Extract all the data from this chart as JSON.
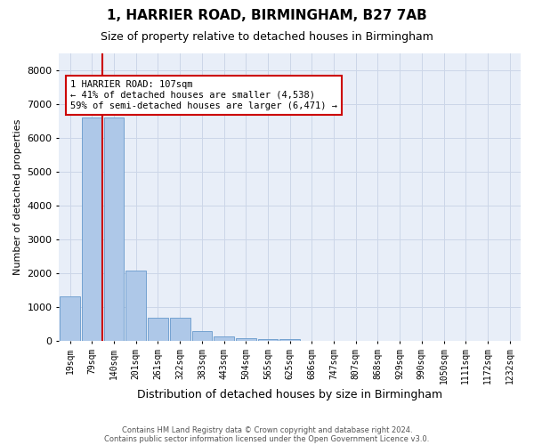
{
  "title1": "1, HARRIER ROAD, BIRMINGHAM, B27 7AB",
  "title2": "Size of property relative to detached houses in Birmingham",
  "xlabel": "Distribution of detached houses by size in Birmingham",
  "ylabel": "Number of detached properties",
  "footnote1": "Contains HM Land Registry data © Crown copyright and database right 2024.",
  "footnote2": "Contains public sector information licensed under the Open Government Licence v3.0.",
  "categories": [
    "19sqm",
    "79sqm",
    "140sqm",
    "201sqm",
    "261sqm",
    "322sqm",
    "383sqm",
    "443sqm",
    "504sqm",
    "565sqm",
    "625sqm",
    "686sqm",
    "747sqm",
    "807sqm",
    "868sqm",
    "929sqm",
    "990sqm",
    "1050sqm",
    "1111sqm",
    "1172sqm",
    "1232sqm"
  ],
  "values": [
    1300,
    6600,
    6600,
    2080,
    680,
    680,
    270,
    130,
    80,
    50,
    50,
    0,
    0,
    0,
    0,
    0,
    0,
    0,
    0,
    0,
    0
  ],
  "bar_color": "#aec8e8",
  "bar_edge_color": "#6699cc",
  "highlight_color": "#cc0000",
  "annotation_text1": "1 HARRIER ROAD: 107sqm",
  "annotation_text2": "← 41% of detached houses are smaller (4,538)",
  "annotation_text3": "59% of semi-detached houses are larger (6,471) →",
  "vline_bar_index": 1,
  "ylim": [
    0,
    8500
  ],
  "yticks": [
    0,
    1000,
    2000,
    3000,
    4000,
    5000,
    6000,
    7000,
    8000
  ],
  "grid_color": "#ccd6e8",
  "bg_color": "#e8eef8",
  "annotation_box_edge_color": "#cc0000",
  "annotation_fontsize": 7.5,
  "title1_fontsize": 11,
  "title2_fontsize": 9,
  "xlabel_fontsize": 9,
  "ylabel_fontsize": 8,
  "tick_fontsize": 7,
  "ytick_fontsize": 8
}
